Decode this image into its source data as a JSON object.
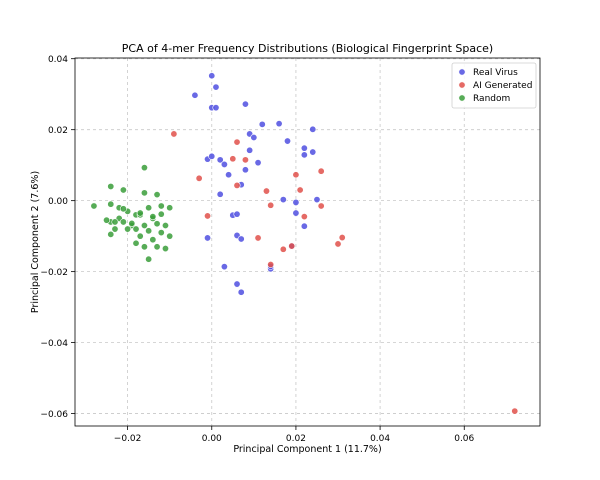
{
  "chart_data": {
    "type": "scatter",
    "title": "PCA of 4-mer Frequency Distributions (Biological Fingerprint Space)",
    "xlabel": "Principal Component 1 (11.7%)",
    "ylabel": "Principal Component 2 (7.6%)",
    "xlim": [
      -0.0325,
      0.078
    ],
    "ylim": [
      -0.0635,
      0.0402
    ],
    "x_ticks": [
      -0.02,
      0.0,
      0.02,
      0.04,
      0.06
    ],
    "x_tick_labels": [
      "−0.02",
      "0.00",
      "0.02",
      "0.04",
      "0.06"
    ],
    "y_ticks": [
      -0.06,
      -0.04,
      -0.02,
      0.0,
      0.02,
      0.04
    ],
    "y_tick_labels": [
      "−0.06",
      "−0.04",
      "−0.02",
      "0.00",
      "0.02",
      "0.04"
    ],
    "grid": true,
    "legend_position": "top-right",
    "series": [
      {
        "name": "Real Virus",
        "color": "#4f4fe0",
        "x": [
          0.0,
          0.001,
          -0.004,
          0.0,
          0.001,
          0.008,
          0.012,
          0.016,
          0.024,
          0.009,
          0.01,
          0.018,
          0.022,
          0.022,
          0.024,
          -0.001,
          0.0,
          0.002,
          0.003,
          0.009,
          0.011,
          0.008,
          0.004,
          0.007,
          0.002,
          0.005,
          0.006,
          0.017,
          0.02,
          0.025,
          0.02,
          0.019,
          0.022,
          -0.001,
          0.006,
          0.007,
          0.014,
          0.003,
          0.006,
          0.007,
          0.014
        ],
        "y": [
          0.0352,
          0.032,
          0.0297,
          0.0262,
          0.0262,
          0.0272,
          0.0215,
          0.0217,
          0.0201,
          0.0188,
          0.0178,
          0.0168,
          0.0148,
          0.0129,
          0.0137,
          0.0117,
          0.0125,
          0.0115,
          0.0102,
          0.0142,
          0.0107,
          0.0087,
          0.0073,
          0.0045,
          0.0018,
          -0.0041,
          -0.0038,
          0.0003,
          -0.0005,
          0.0003,
          -0.0035,
          -0.0128,
          -0.0072,
          -0.0105,
          -0.0098,
          -0.0108,
          -0.0192,
          -0.0186,
          -0.0235,
          -0.0258,
          -0.0185
        ]
      },
      {
        "name": "AI Generated",
        "color": "#e0504a",
        "x": [
          -0.009,
          -0.003,
          0.006,
          0.005,
          0.008,
          0.006,
          -0.001,
          0.013,
          0.014,
          0.02,
          0.021,
          0.026,
          0.026,
          0.022,
          0.019,
          0.017,
          0.011,
          0.014,
          0.03,
          0.031,
          0.072
        ],
        "y": [
          0.0188,
          0.0063,
          0.0165,
          0.0118,
          0.0115,
          0.0043,
          -0.0043,
          0.0027,
          -0.0013,
          0.0073,
          0.003,
          0.0083,
          -0.0015,
          -0.0045,
          -0.0128,
          -0.0137,
          -0.0105,
          -0.018,
          -0.0122,
          -0.0104,
          -0.0593
        ]
      },
      {
        "name": "Random",
        "color": "#3a9e3a",
        "x": [
          -0.016,
          -0.024,
          -0.021,
          -0.013,
          -0.016,
          -0.028,
          -0.024,
          -0.022,
          -0.018,
          -0.015,
          -0.012,
          -0.01,
          -0.02,
          -0.017,
          -0.014,
          -0.022,
          -0.024,
          -0.021,
          -0.019,
          -0.016,
          -0.013,
          -0.011,
          -0.023,
          -0.018,
          -0.015,
          -0.012,
          -0.024,
          -0.02,
          -0.017,
          -0.014,
          -0.01,
          -0.018,
          -0.016,
          -0.013,
          -0.015,
          -0.011,
          -0.025,
          -0.023,
          -0.021,
          -0.019,
          -0.017,
          -0.014,
          -0.012
        ],
        "y": [
          0.0093,
          0.004,
          0.003,
          0.0017,
          0.0022,
          -0.0015,
          -0.001,
          -0.002,
          -0.004,
          -0.002,
          -0.0015,
          -0.002,
          -0.003,
          -0.004,
          -0.005,
          -0.005,
          -0.006,
          -0.006,
          -0.007,
          -0.007,
          -0.0065,
          -0.007,
          -0.008,
          -0.008,
          -0.0085,
          -0.009,
          -0.0095,
          -0.008,
          -0.01,
          -0.011,
          -0.01,
          -0.012,
          -0.013,
          -0.013,
          -0.0165,
          -0.0135,
          -0.0055,
          -0.006,
          -0.0023,
          -0.0064,
          -0.0035,
          -0.0045,
          -0.0038
        ]
      }
    ]
  }
}
